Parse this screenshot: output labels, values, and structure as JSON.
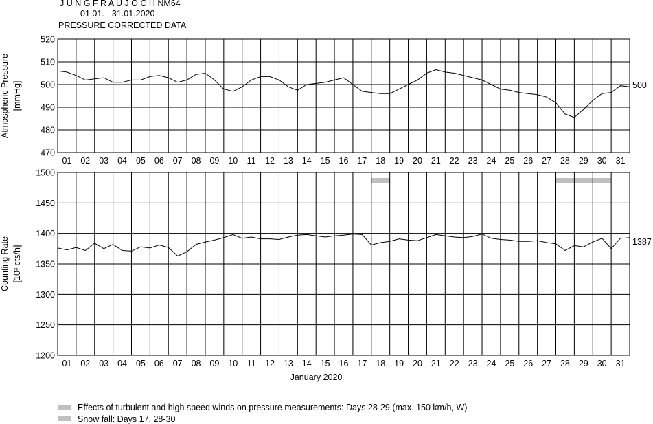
{
  "header": {
    "station": "J U N G F R A U J O C H",
    "monitor": "NM64",
    "period": "01.01. - 31.01.2020",
    "subtitle": "PRESSURE CORRECTED DATA"
  },
  "chart_data": [
    {
      "type": "line",
      "name": "pressure",
      "ylabel": "Atmospheric Pressure",
      "yunit": "[mmHg]",
      "ylim": [
        470,
        520
      ],
      "yticks": [
        "470",
        "480",
        "490",
        "500",
        "510",
        "520"
      ],
      "xlim": [
        0.5,
        31.5
      ],
      "xticks": [
        "01",
        "02",
        "03",
        "04",
        "05",
        "06",
        "07",
        "08",
        "09",
        "10",
        "11",
        "12",
        "13",
        "14",
        "15",
        "16",
        "17",
        "18",
        "19",
        "20",
        "21",
        "22",
        "23",
        "24",
        "25",
        "26",
        "27",
        "28",
        "29",
        "30",
        "31"
      ],
      "grid": true,
      "reference_label": "500",
      "reference_value": 500,
      "x": [
        0.5,
        1.0,
        1.5,
        2.0,
        2.5,
        3.0,
        3.5,
        4.0,
        4.5,
        5.0,
        5.5,
        6.0,
        6.5,
        7.0,
        7.5,
        8.0,
        8.5,
        9.0,
        9.5,
        10.0,
        10.5,
        11.0,
        11.5,
        12.0,
        12.5,
        13.0,
        13.5,
        14.0,
        14.5,
        15.0,
        15.5,
        16.0,
        16.5,
        17.0,
        17.5,
        18.0,
        18.5,
        19.0,
        19.5,
        20.0,
        20.5,
        21.0,
        21.5,
        22.0,
        22.5,
        23.0,
        23.5,
        24.0,
        24.5,
        25.0,
        25.5,
        26.0,
        26.5,
        27.0,
        27.5,
        28.0,
        28.5,
        29.0,
        29.5,
        30.0,
        30.5,
        31.0,
        31.5
      ],
      "values": [
        506,
        505.5,
        504,
        502,
        502.5,
        503,
        501,
        501,
        502,
        502,
        503.5,
        504,
        503,
        501,
        502,
        504.5,
        505,
        502,
        498,
        497,
        499,
        502,
        503.5,
        503.5,
        502,
        499,
        497.5,
        500,
        500.5,
        501,
        502,
        503,
        500,
        497,
        496.5,
        496,
        496,
        498,
        500,
        502,
        505,
        506.5,
        505.5,
        505,
        504,
        503,
        502,
        500,
        498,
        497.5,
        496.5,
        496,
        495.5,
        494.5,
        492,
        487,
        485.5,
        489,
        493,
        496,
        496.5,
        499.5,
        499
      ]
    },
    {
      "type": "line",
      "name": "counting-rate",
      "ylabel": "Counting Rate",
      "yunit": "[10³ cts/h]",
      "ylim": [
        1200,
        1500
      ],
      "yticks": [
        "1200",
        "1250",
        "1300",
        "1350",
        "1400",
        "1450",
        "1500"
      ],
      "xlim": [
        0.5,
        31.5
      ],
      "xticks": [
        "01",
        "02",
        "03",
        "04",
        "05",
        "06",
        "07",
        "08",
        "09",
        "10",
        "11",
        "12",
        "13",
        "14",
        "15",
        "16",
        "17",
        "18",
        "19",
        "20",
        "21",
        "22",
        "23",
        "24",
        "25",
        "26",
        "27",
        "28",
        "29",
        "30",
        "31"
      ],
      "xlabel": "January 2020",
      "grid": true,
      "reference_label": "1387",
      "reference_value": 1387,
      "x": [
        0.5,
        1.0,
        1.5,
        2.0,
        2.5,
        3.0,
        3.5,
        4.0,
        4.5,
        5.0,
        5.5,
        6.0,
        6.5,
        7.0,
        7.5,
        8.0,
        8.5,
        9.0,
        9.5,
        10.0,
        10.5,
        11.0,
        11.5,
        12.0,
        12.5,
        13.0,
        13.5,
        14.0,
        14.5,
        15.0,
        15.5,
        16.0,
        16.5,
        17.0,
        17.5,
        18.0,
        18.5,
        19.0,
        19.5,
        20.0,
        20.5,
        21.0,
        21.5,
        22.0,
        22.5,
        23.0,
        23.5,
        24.0,
        24.5,
        25.0,
        25.5,
        26.0,
        26.5,
        27.0,
        27.5,
        28.0,
        28.5,
        29.0,
        29.5,
        30.0,
        30.5,
        31.0,
        31.5
      ],
      "values": [
        1376,
        1373,
        1377,
        1372,
        1384,
        1375,
        1382,
        1372,
        1371,
        1378,
        1376,
        1381,
        1377,
        1363,
        1370,
        1382,
        1386,
        1389,
        1393,
        1398,
        1392,
        1394,
        1391,
        1391,
        1390,
        1394,
        1397,
        1398,
        1396,
        1394,
        1396,
        1397,
        1399,
        1398,
        1381,
        1385,
        1387,
        1391,
        1389,
        1388,
        1393,
        1398,
        1396,
        1394,
        1393,
        1395,
        1399,
        1392,
        1390,
        1389,
        1387,
        1387,
        1388,
        1385,
        1383,
        1372,
        1380,
        1378,
        1386,
        1392,
        1375,
        1392,
        1393
      ],
      "shaded_periods": [
        [
          17.5,
          18.5
        ],
        [
          27.5,
          30.5
        ]
      ]
    }
  ],
  "legend": {
    "item_1": "Effects of turbulent and high speed winds on pressure measurements: Days 28-29 (max. 150 km/h, W)",
    "item_2": "Snow fall: Days 17, 28-30",
    "swatch_color": "#c0c0c0"
  }
}
